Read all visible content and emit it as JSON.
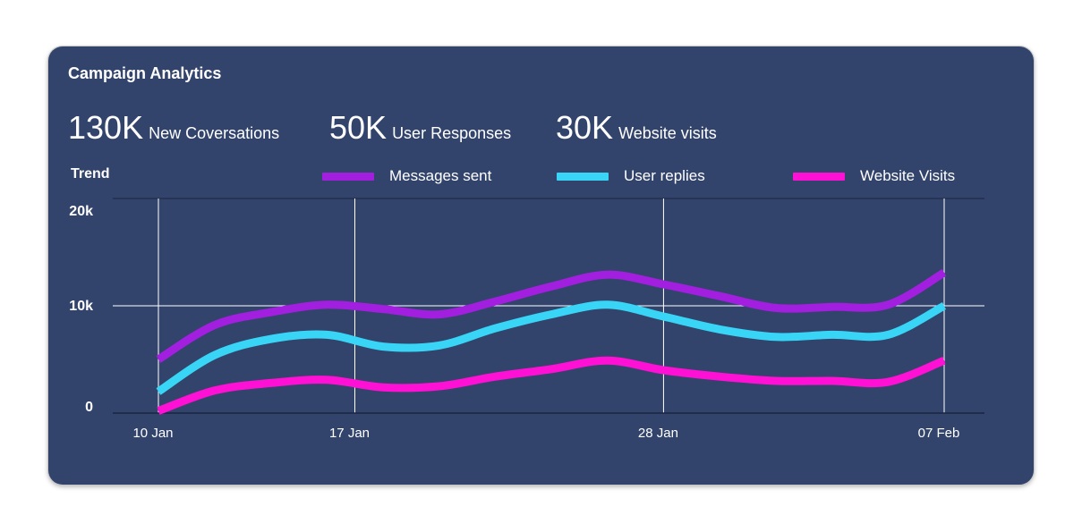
{
  "card": {
    "title": "Campaign Analytics",
    "kpis": [
      {
        "value": "130K",
        "label": "New Coversations"
      },
      {
        "value": "50K",
        "label": "User Responses"
      },
      {
        "value": "30K",
        "label": "Website visits"
      }
    ],
    "trend_label": "Trend",
    "background": "#33446c"
  },
  "chart_data": {
    "type": "line",
    "title": "",
    "xlabel": "",
    "ylabel": "",
    "ylim": [
      0,
      20000
    ],
    "yticks": [
      {
        "value": 0,
        "label": "0"
      },
      {
        "value": 10000,
        "label": "10k"
      },
      {
        "value": 20000,
        "label": "20k"
      }
    ],
    "xlim": [
      "2023-01-10",
      "2023-02-07"
    ],
    "xticks": [
      {
        "date": "2023-01-10",
        "label": "10 Jan"
      },
      {
        "date": "2023-01-17",
        "label": "17 Jan"
      },
      {
        "date": "2023-01-28",
        "label": "28 Jan"
      },
      {
        "date": "2023-02-07",
        "label": "07 Feb"
      }
    ],
    "grid": true,
    "legend_position": "top",
    "x": [
      "2023-01-10",
      "2023-01-12",
      "2023-01-14",
      "2023-01-16",
      "2023-01-18",
      "2023-01-20",
      "2023-01-22",
      "2023-01-24",
      "2023-01-26",
      "2023-01-28",
      "2023-01-30",
      "2023-02-01",
      "2023-02-03",
      "2023-02-05",
      "2023-02-07"
    ],
    "series": [
      {
        "name": "Messages sent",
        "color": "#a21fdf",
        "values": [
          5000,
          8200,
          9400,
          10100,
          9700,
          9200,
          10400,
          11800,
          12900,
          12000,
          10900,
          9800,
          9900,
          10100,
          13100
        ]
      },
      {
        "name": "User replies",
        "color": "#38d5f7",
        "values": [
          2000,
          5400,
          6900,
          7300,
          6200,
          6300,
          7900,
          9200,
          10100,
          9000,
          7800,
          7100,
          7300,
          7300,
          10000
        ]
      },
      {
        "name": "Website Visits",
        "color": "#ff10d5",
        "values": [
          200,
          2100,
          2800,
          3100,
          2400,
          2500,
          3400,
          4100,
          4900,
          4000,
          3400,
          3000,
          3000,
          2900,
          4900
        ]
      }
    ]
  }
}
